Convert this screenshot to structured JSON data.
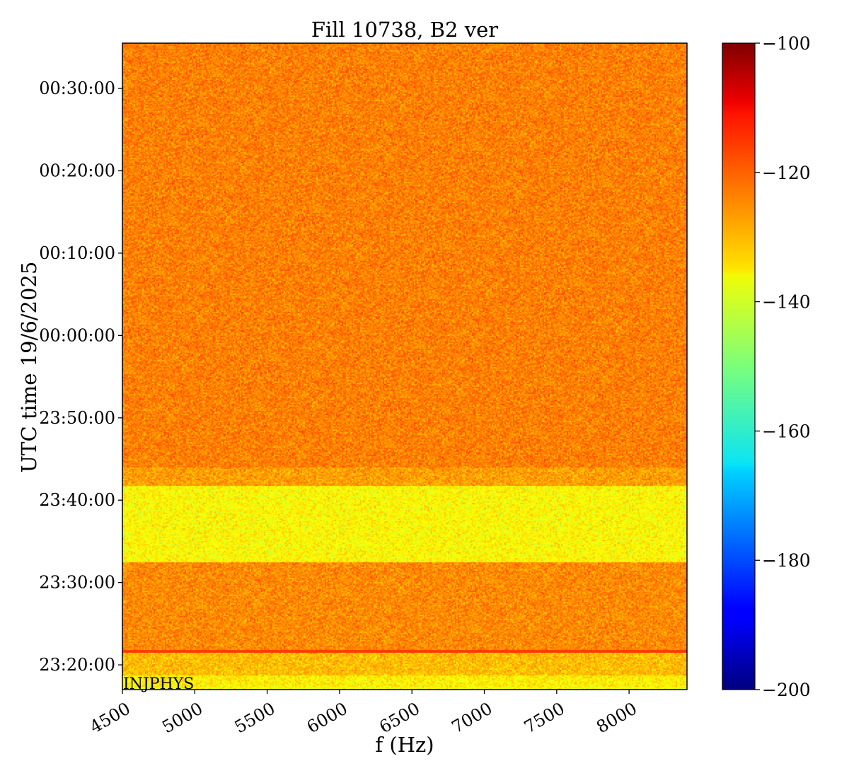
{
  "chart_data": {
    "type": "heatmap",
    "title": "Fill 10738, B2 ver",
    "xlabel": "f (Hz)",
    "ylabel": "UTC time 19/6/2025",
    "xlim": [
      4500,
      8400
    ],
    "x_ticks": [
      4500,
      5000,
      5500,
      6000,
      6500,
      7000,
      7500,
      8000
    ],
    "y_tick_labels": [
      "23:20:00",
      "23:30:00",
      "23:40:00",
      "23:50:00",
      "00:00:00",
      "00:10:00",
      "00:20:00",
      "00:30:00"
    ],
    "colorbar": {
      "colormap": "jet",
      "range": [
        -200,
        -100
      ],
      "ticks": [
        -100,
        -120,
        -140,
        -160,
        -180,
        -200
      ],
      "tick_labels": [
        "−100",
        "−120",
        "−140",
        "−160",
        "−180",
        "−200"
      ]
    },
    "annotation": "INJPHYS",
    "regions_dB": [
      {
        "time_from": "23:17:00",
        "time_to": "23:17:30",
        "approx_level": -138
      },
      {
        "time_from": "23:17:30",
        "time_to": "23:18:45",
        "approx_level": -136
      },
      {
        "time_from": "23:18:45",
        "time_to": "23:21:45",
        "approx_level": -131
      },
      {
        "time_from": "23:21:45",
        "time_to": "23:32:30",
        "approx_level": -126
      },
      {
        "time_from": "23:32:30",
        "time_to": "23:41:45",
        "approx_level": -137
      },
      {
        "time_from": "23:41:45",
        "time_to": "23:44:00",
        "approx_level": -128
      },
      {
        "time_from": "23:44:00",
        "time_to": "00:35:30",
        "approx_level": -125
      }
    ],
    "horizontal_line": {
      "time": "23:21:45",
      "approx_level": -118
    },
    "colors": {
      "background": "#ffffff",
      "axis": "#000000"
    }
  }
}
